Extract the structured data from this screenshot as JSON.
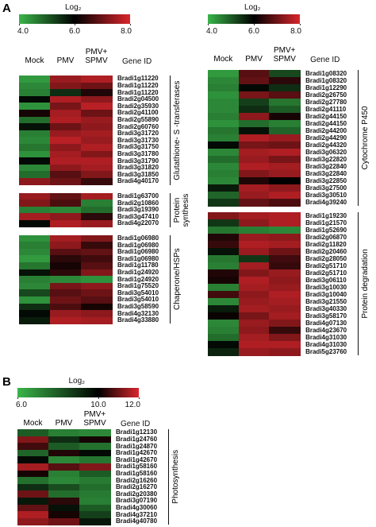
{
  "chart_data": [
    {
      "type": "heatmap",
      "panel_label": "A",
      "colorbar_title": "Log₂",
      "clim": [
        4,
        8
      ],
      "cticks": [
        {
          "value": 4,
          "label": "4.0"
        },
        {
          "value": 6,
          "label": "6.0"
        },
        {
          "value": 8,
          "label": "8.0"
        }
      ],
      "colors": [
        "#3ab54a",
        "#000000",
        "#d9262c"
      ],
      "columns": [
        "Mock",
        "PMV",
        "PMV+ SPMV"
      ],
      "row_header": "Gene ID",
      "groups": [
        {
          "name": "Glutathione- S -transferases",
          "genes": [
            "Bradi1g11220",
            "Bradi1g11220",
            "Bradi1g11220",
            "Bradi2g04500",
            "Bradi2g35930",
            "Bradi2g41100",
            "Bradi2g55890",
            "Bradi2g60760",
            "Bradi3g31720",
            "Bradi3g31730",
            "Bradi3g31750",
            "Bradi3g31780",
            "Bradi3g31790",
            "Bradi3g31820",
            "Bradi3g31850",
            "Bradi4g40170"
          ],
          "values": [
            [
              4.3,
              7.4,
              7.6
            ],
            [
              4.5,
              7.2,
              7.0
            ],
            [
              4.6,
              5.5,
              6.3
            ],
            [
              5.9,
              7.6,
              7.3
            ],
            [
              4.4,
              7.1,
              7.7
            ],
            [
              6.2,
              7.5,
              7.0
            ],
            [
              4.8,
              7.6,
              7.4
            ],
            [
              5.8,
              7.0,
              7.3
            ],
            [
              4.6,
              7.4,
              7.5
            ],
            [
              4.5,
              7.7,
              7.4
            ],
            [
              4.7,
              7.3,
              7.6
            ],
            [
              4.4,
              7.5,
              7.2
            ],
            [
              5.9,
              7.6,
              7.6
            ],
            [
              4.5,
              7.3,
              7.5
            ],
            [
              4.8,
              6.8,
              7.2
            ],
            [
              7.3,
              7.0,
              6.5
            ]
          ]
        },
        {
          "name": "Protein synthesis",
          "genes": [
            "Bradi1g63700",
            "Bradi2g10860",
            "Bradi3g19390",
            "Bradi3g47410",
            "Bradi4g22070"
          ],
          "values": [
            [
              7.4,
              6.9,
              7.5
            ],
            [
              7.2,
              6.7,
              4.6
            ],
            [
              4.6,
              4.5,
              4.8
            ],
            [
              7.5,
              7.3,
              6.4
            ],
            [
              5.9,
              7.6,
              7.4
            ]
          ]
        },
        {
          "name": "Chaperone/HSPs",
          "genes": [
            "Bradi1g06980",
            "Bradi1g06980",
            "Bradi1g06980",
            "Bradi1g06980",
            "Bradi1g11780",
            "Bradi1g24920",
            "Bradi1g24920",
            "Bradi1g75520",
            "Bradi3g54010",
            "Bradi3g54010",
            "Bradi3g58590",
            "Bradi4g32130",
            "Bradi4g33880"
          ],
          "values": [
            [
              4.4,
              7.5,
              7.2
            ],
            [
              4.6,
              7.3,
              6.5
            ],
            [
              4.5,
              6.8,
              6.9
            ],
            [
              4.3,
              6.4,
              6.6
            ],
            [
              4.7,
              6.2,
              6.8
            ],
            [
              5.8,
              6.4,
              7.2
            ],
            [
              4.6,
              4.5,
              4.4
            ],
            [
              4.5,
              7.1,
              7.3
            ],
            [
              5.2,
              6.8,
              7.0
            ],
            [
              4.4,
              7.0,
              6.8
            ],
            [
              5.5,
              6.7,
              6.2
            ],
            [
              5.9,
              7.4,
              7.3
            ],
            [
              5.7,
              7.6,
              7.5
            ]
          ]
        }
      ]
    },
    {
      "type": "heatmap",
      "colorbar_title": "Log₂",
      "clim": [
        4,
        8
      ],
      "cticks": [
        {
          "value": 4,
          "label": "4.0"
        },
        {
          "value": 6,
          "label": "6.0"
        },
        {
          "value": 8,
          "label": "8.0"
        }
      ],
      "colors": [
        "#3ab54a",
        "#000000",
        "#d9262c"
      ],
      "columns": [
        "Mock",
        "PMV",
        "PMV+ SPMV"
      ],
      "row_header": "Gene ID",
      "groups": [
        {
          "name": "Cytochrome P450",
          "genes": [
            "Bradi1g08320",
            "Bradi1g08320",
            "Bradi1g12290",
            "Bradi2g26750",
            "Bradi2g27780",
            "Bradi2g41110",
            "Bradi2g44150",
            "Bradi2g44150",
            "Bradi2g44200",
            "Bradi2g44290",
            "Bradi2g44320",
            "Bradi3g06320",
            "Bradi3g22820",
            "Bradi3g22840",
            "Bradi3g22840",
            "Bradi3g22850",
            "Bradi3g27500",
            "Bradi3g30510",
            "Bradi4g39240"
          ],
          "values": [
            [
              4.3,
              6.8,
              5.2
            ],
            [
              4.5,
              6.9,
              6.4
            ],
            [
              4.6,
              5.9,
              5.5
            ],
            [
              4.4,
              7.1,
              6.8
            ],
            [
              4.5,
              5.3,
              4.7
            ],
            [
              4.5,
              5.5,
              5.0
            ],
            [
              4.6,
              7.3,
              6.2
            ],
            [
              4.4,
              4.8,
              4.6
            ],
            [
              4.7,
              5.8,
              4.9
            ],
            [
              4.6,
              7.6,
              7.4
            ],
            [
              5.9,
              7.1,
              7.0
            ],
            [
              4.5,
              7.5,
              7.6
            ],
            [
              4.8,
              7.4,
              7.1
            ],
            [
              4.5,
              7.6,
              7.5
            ],
            [
              4.6,
              7.2,
              7.4
            ],
            [
              4.5,
              6.3,
              6.0
            ],
            [
              5.7,
              7.5,
              7.3
            ],
            [
              4.9,
              7.4,
              7.6
            ],
            [
              5.4,
              6.9,
              6.7
            ]
          ]
        },
        {
          "name": "Protein degradation",
          "genes": [
            "Bradi1g19230",
            "Bradi1g21570",
            "Bradi1g52690",
            "Bradi2g06870",
            "Bradi2g11820",
            "Bradi2g20460",
            "Bradi2g28050",
            "Bradi2g51710",
            "Bradi2g51710",
            "Bradi3g06110",
            "Bradi3g10030",
            "Bradi3g10040",
            "Bradi3g21550",
            "Bradi3g40330",
            "Bradi3g58170",
            "Bradi4g07130",
            "Bradi4g23670",
            "Bradi4g31030",
            "Bradi4g31030",
            "Bradi5g23760"
          ],
          "values": [
            [
              7.2,
              7.5,
              7.6
            ],
            [
              5.4,
              7.3,
              7.6
            ],
            [
              4.7,
              4.6,
              4.5
            ],
            [
              6.3,
              7.4,
              7.3
            ],
            [
              6.5,
              7.6,
              7.5
            ],
            [
              5.8,
              7.4,
              7.0
            ],
            [
              4.7,
              5.4,
              6.6
            ],
            [
              4.6,
              7.5,
              6.5
            ],
            [
              6.3,
              7.2,
              7.4
            ],
            [
              6.2,
              7.6,
              7.3
            ],
            [
              4.6,
              7.5,
              7.4
            ],
            [
              6.6,
              7.3,
              7.6
            ],
            [
              4.5,
              7.4,
              7.5
            ],
            [
              5.7,
              7.5,
              7.4
            ],
            [
              6.1,
              7.1,
              7.5
            ],
            [
              4.5,
              7.4,
              7.2
            ],
            [
              4.6,
              7.3,
              6.5
            ],
            [
              4.8,
              7.5,
              7.2
            ],
            [
              5.9,
              7.6,
              7.6
            ],
            [
              5.6,
              7.4,
              7.3
            ]
          ]
        }
      ]
    },
    {
      "type": "heatmap",
      "panel_label": "B",
      "colorbar_title": "Log₂",
      "clim": [
        6,
        12
      ],
      "cticks": [
        {
          "value": 6,
          "label": "6.0"
        },
        {
          "value": 10,
          "label": "10.0"
        },
        {
          "value": 12,
          "label": "12.0"
        }
      ],
      "colors": [
        "#3ab54a",
        "#000000",
        "#d9262c"
      ],
      "columns": [
        "Mock",
        "PMV",
        "PMV+ SPMV"
      ],
      "row_header": "Gene ID",
      "groups": [
        {
          "name": "Photosynthesis",
          "genes": [
            "Bradi1g12130",
            "Bradi1g24760",
            "Bradi1g24870",
            "Bradi1g42670",
            "Bradi1g42670",
            "Bradi1g58160",
            "Bradi1g58160",
            "Bradi2g16260",
            "Bradi2g16270",
            "Bradi2g20380",
            "Bradi3g07190",
            "Bradi4g30060",
            "Bradi4g37210",
            "Bradi4g40780"
          ],
          "values": [
            [
              8.0,
              7.2,
              7.0
            ],
            [
              11.2,
              9.0,
              10.2
            ],
            [
              10.6,
              8.0,
              7.5
            ],
            [
              7.8,
              10.3,
              9.8
            ],
            [
              9.8,
              7.0,
              7.4
            ],
            [
              11.5,
              10.8,
              11.2
            ],
            [
              10.2,
              7.2,
              8.0
            ],
            [
              7.5,
              7.0,
              7.3
            ],
            [
              9.0,
              8.3,
              7.6
            ],
            [
              11.0,
              7.6,
              7.3
            ],
            [
              9.5,
              10.4,
              7.2
            ],
            [
              10.9,
              9.6,
              8.0
            ],
            [
              11.6,
              10.2,
              8.6
            ],
            [
              11.3,
              11.0,
              9.5
            ]
          ]
        }
      ]
    }
  ]
}
